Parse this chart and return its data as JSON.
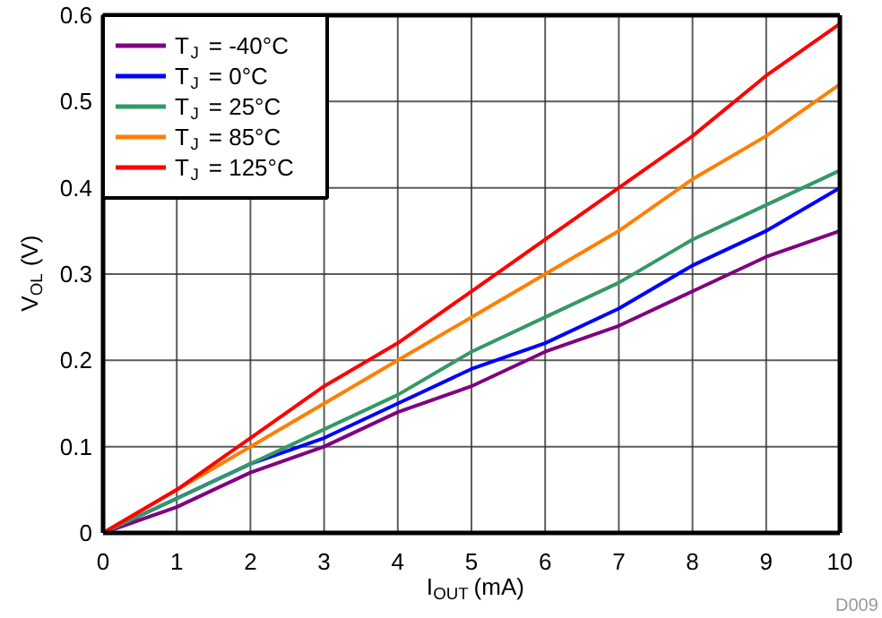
{
  "chart_data": {
    "type": "line",
    "xlabel": "I$_{OUT}$ (mA)",
    "ylabel": "V$_{OL}$ (V)",
    "x": [
      0,
      1,
      2,
      3,
      4,
      5,
      6,
      7,
      8,
      9,
      10
    ],
    "series": [
      {
        "name": "T$_{J}$ = -40°C",
        "color": "#800080",
        "values": [
          0,
          0.03,
          0.07,
          0.1,
          0.14,
          0.17,
          0.21,
          0.24,
          0.28,
          0.32,
          0.35
        ]
      },
      {
        "name": "T$_{J}$ = 0°C",
        "color": "#0000ff",
        "values": [
          0,
          0.04,
          0.08,
          0.11,
          0.15,
          0.19,
          0.22,
          0.26,
          0.31,
          0.35,
          0.4
        ]
      },
      {
        "name": "T$_{J}$ = 25°C",
        "color": "#339966",
        "values": [
          0,
          0.04,
          0.08,
          0.12,
          0.16,
          0.21,
          0.25,
          0.29,
          0.34,
          0.38,
          0.42
        ]
      },
      {
        "name": "T$_{J}$ = 85°C",
        "color": "#ff7f00",
        "values": [
          0,
          0.05,
          0.1,
          0.15,
          0.2,
          0.25,
          0.3,
          0.35,
          0.41,
          0.46,
          0.52
        ]
      },
      {
        "name": "T$_{J}$ = 125°C",
        "color": "#ff0000",
        "values": [
          0,
          0.05,
          0.11,
          0.17,
          0.22,
          0.28,
          0.34,
          0.4,
          0.46,
          0.53,
          0.59
        ]
      }
    ],
    "xlim": [
      0,
      10
    ],
    "ylim": [
      0,
      0.6
    ],
    "xticks": [
      0,
      1,
      2,
      3,
      4,
      5,
      6,
      7,
      8,
      9,
      10
    ],
    "yticks": [
      0,
      0.1,
      0.2,
      0.3,
      0.4,
      0.5,
      0.6
    ],
    "grid": true,
    "legend": "top left",
    "marker": "none",
    "line_style": "solid",
    "annotations": [
      "D009"
    ]
  }
}
